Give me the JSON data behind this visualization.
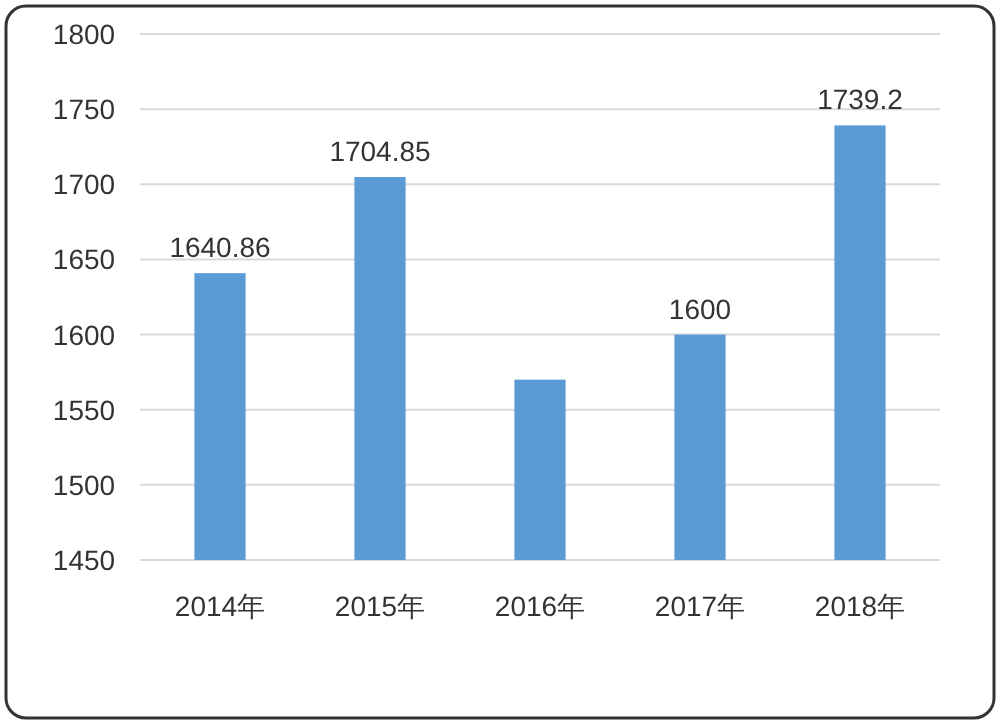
{
  "chart_data": {
    "type": "bar",
    "categories": [
      "2014年",
      "2015年",
      "2016年",
      "2017年",
      "2018年"
    ],
    "values": [
      1640.86,
      1704.85,
      1570,
      1600,
      1739.2
    ],
    "value_labels": [
      "1640.86",
      "1704.85",
      null,
      "1600",
      "1739.2"
    ],
    "color": "#5b9bd5",
    "ylim": [
      1450,
      1800
    ],
    "yticks": [
      1450,
      1500,
      1550,
      1600,
      1650,
      1700,
      1750,
      1800
    ],
    "grid": "y"
  }
}
